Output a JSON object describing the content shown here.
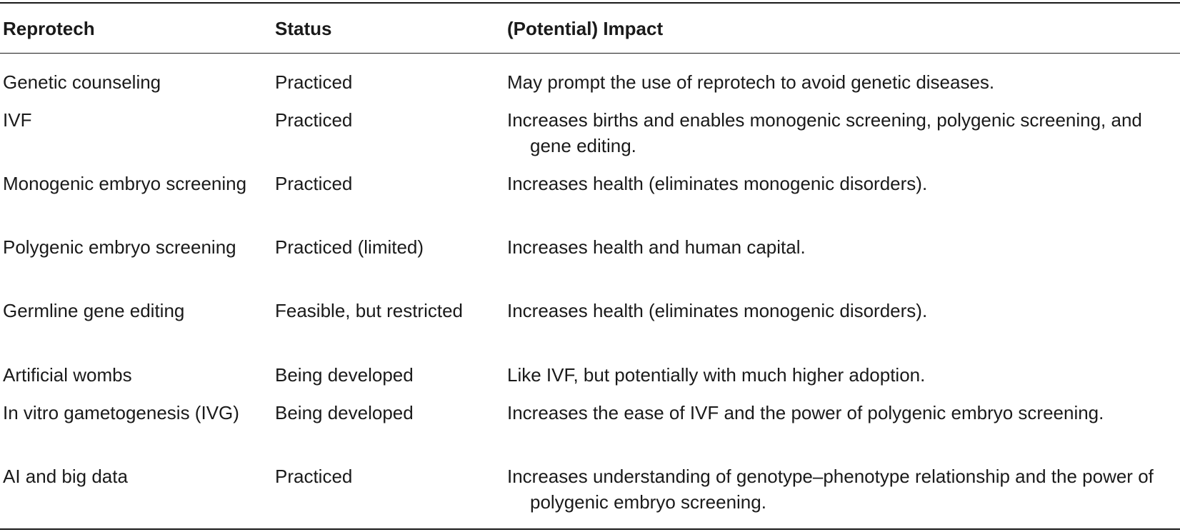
{
  "table": {
    "headers": [
      "Reprotech",
      "Status",
      "(Potential) Impact"
    ],
    "rows": [
      [
        "Genetic counseling",
        "Practiced",
        "May prompt the use of reprotech to avoid genetic diseases."
      ],
      [
        "IVF",
        "Practiced",
        "Increases births and enables monogenic screening, polygenic screening, and gene editing."
      ],
      [
        "Monogenic embryo screening",
        "Practiced",
        "Increases health (eliminates monogenic disorders)."
      ],
      [
        "Polygenic embryo screening",
        "Practiced (limited)",
        "Increases health and human capital."
      ],
      [
        "Germline gene editing",
        "Feasible, but restricted",
        "Increases health (eliminates monogenic disorders)."
      ],
      [
        "Artificial wombs",
        "Being developed",
        "Like IVF, but potentially with much higher adoption."
      ],
      [
        "In vitro gametogenesis (IVG)",
        "Being developed",
        "Increases the ease of IVF and the power of polygenic embryo screening."
      ],
      [
        "AI and big data",
        "Practiced",
        "Increases understanding of genotype–phenotype relationship and the power of polygenic embryo screening."
      ]
    ]
  }
}
